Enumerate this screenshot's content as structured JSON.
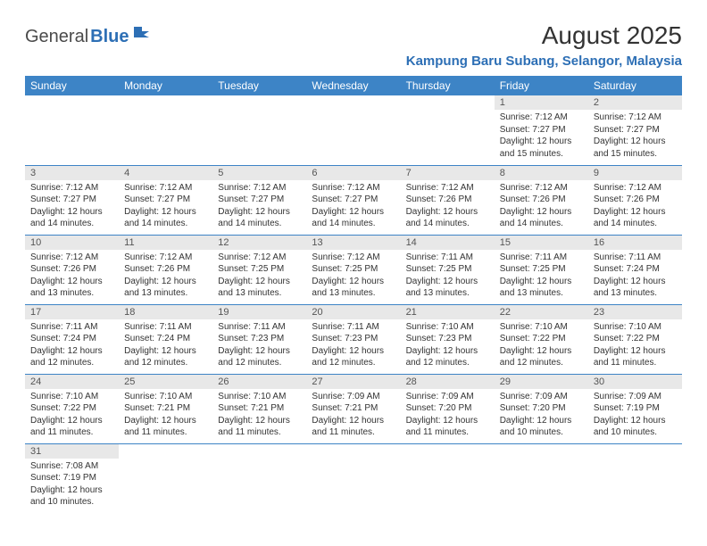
{
  "logo": {
    "general": "General",
    "blue": "Blue"
  },
  "title": "August 2025",
  "location": "Kampung Baru Subang, Selangor, Malaysia",
  "colors": {
    "header_bg": "#3d84c6",
    "header_text": "#ffffff",
    "day_num_bg": "#e8e8e8",
    "border": "#3d84c6",
    "brand_blue": "#2d6fb5",
    "text": "#333333",
    "logo_gray": "#4a4a4a"
  },
  "weekdays": [
    "Sunday",
    "Monday",
    "Tuesday",
    "Wednesday",
    "Thursday",
    "Friday",
    "Saturday"
  ],
  "weeks": [
    [
      null,
      null,
      null,
      null,
      null,
      {
        "n": "1",
        "sr": "7:12 AM",
        "ss": "7:27 PM",
        "dl": "12 hours and 15 minutes."
      },
      {
        "n": "2",
        "sr": "7:12 AM",
        "ss": "7:27 PM",
        "dl": "12 hours and 15 minutes."
      }
    ],
    [
      {
        "n": "3",
        "sr": "7:12 AM",
        "ss": "7:27 PM",
        "dl": "12 hours and 14 minutes."
      },
      {
        "n": "4",
        "sr": "7:12 AM",
        "ss": "7:27 PM",
        "dl": "12 hours and 14 minutes."
      },
      {
        "n": "5",
        "sr": "7:12 AM",
        "ss": "7:27 PM",
        "dl": "12 hours and 14 minutes."
      },
      {
        "n": "6",
        "sr": "7:12 AM",
        "ss": "7:27 PM",
        "dl": "12 hours and 14 minutes."
      },
      {
        "n": "7",
        "sr": "7:12 AM",
        "ss": "7:26 PM",
        "dl": "12 hours and 14 minutes."
      },
      {
        "n": "8",
        "sr": "7:12 AM",
        "ss": "7:26 PM",
        "dl": "12 hours and 14 minutes."
      },
      {
        "n": "9",
        "sr": "7:12 AM",
        "ss": "7:26 PM",
        "dl": "12 hours and 14 minutes."
      }
    ],
    [
      {
        "n": "10",
        "sr": "7:12 AM",
        "ss": "7:26 PM",
        "dl": "12 hours and 13 minutes."
      },
      {
        "n": "11",
        "sr": "7:12 AM",
        "ss": "7:26 PM",
        "dl": "12 hours and 13 minutes."
      },
      {
        "n": "12",
        "sr": "7:12 AM",
        "ss": "7:25 PM",
        "dl": "12 hours and 13 minutes."
      },
      {
        "n": "13",
        "sr": "7:12 AM",
        "ss": "7:25 PM",
        "dl": "12 hours and 13 minutes."
      },
      {
        "n": "14",
        "sr": "7:11 AM",
        "ss": "7:25 PM",
        "dl": "12 hours and 13 minutes."
      },
      {
        "n": "15",
        "sr": "7:11 AM",
        "ss": "7:25 PM",
        "dl": "12 hours and 13 minutes."
      },
      {
        "n": "16",
        "sr": "7:11 AM",
        "ss": "7:24 PM",
        "dl": "12 hours and 13 minutes."
      }
    ],
    [
      {
        "n": "17",
        "sr": "7:11 AM",
        "ss": "7:24 PM",
        "dl": "12 hours and 12 minutes."
      },
      {
        "n": "18",
        "sr": "7:11 AM",
        "ss": "7:24 PM",
        "dl": "12 hours and 12 minutes."
      },
      {
        "n": "19",
        "sr": "7:11 AM",
        "ss": "7:23 PM",
        "dl": "12 hours and 12 minutes."
      },
      {
        "n": "20",
        "sr": "7:11 AM",
        "ss": "7:23 PM",
        "dl": "12 hours and 12 minutes."
      },
      {
        "n": "21",
        "sr": "7:10 AM",
        "ss": "7:23 PM",
        "dl": "12 hours and 12 minutes."
      },
      {
        "n": "22",
        "sr": "7:10 AM",
        "ss": "7:22 PM",
        "dl": "12 hours and 12 minutes."
      },
      {
        "n": "23",
        "sr": "7:10 AM",
        "ss": "7:22 PM",
        "dl": "12 hours and 11 minutes."
      }
    ],
    [
      {
        "n": "24",
        "sr": "7:10 AM",
        "ss": "7:22 PM",
        "dl": "12 hours and 11 minutes."
      },
      {
        "n": "25",
        "sr": "7:10 AM",
        "ss": "7:21 PM",
        "dl": "12 hours and 11 minutes."
      },
      {
        "n": "26",
        "sr": "7:10 AM",
        "ss": "7:21 PM",
        "dl": "12 hours and 11 minutes."
      },
      {
        "n": "27",
        "sr": "7:09 AM",
        "ss": "7:21 PM",
        "dl": "12 hours and 11 minutes."
      },
      {
        "n": "28",
        "sr": "7:09 AM",
        "ss": "7:20 PM",
        "dl": "12 hours and 11 minutes."
      },
      {
        "n": "29",
        "sr": "7:09 AM",
        "ss": "7:20 PM",
        "dl": "12 hours and 10 minutes."
      },
      {
        "n": "30",
        "sr": "7:09 AM",
        "ss": "7:19 PM",
        "dl": "12 hours and 10 minutes."
      }
    ],
    [
      {
        "n": "31",
        "sr": "7:08 AM",
        "ss": "7:19 PM",
        "dl": "12 hours and 10 minutes."
      },
      null,
      null,
      null,
      null,
      null,
      null
    ]
  ],
  "labels": {
    "sunrise": "Sunrise:",
    "sunset": "Sunset:",
    "daylight": "Daylight:"
  }
}
